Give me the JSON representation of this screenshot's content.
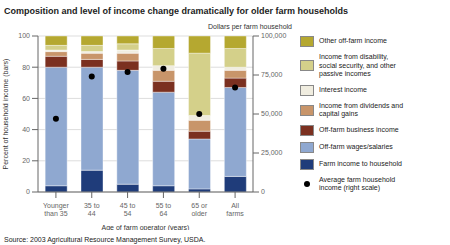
{
  "chart_data": {
    "type": "bar",
    "stacked": true,
    "grid": true,
    "legend": "right",
    "title": "Composition and level of income change dramatically for older farm households",
    "xlabel": "Age of farm operator (years)",
    "ylabel": "Percent of household income (bars)",
    "y2label": "Dollars per farm household",
    "source": "Source: 2003 Agricultural Resource Management Survey, USDA.",
    "categories": [
      "Younger\nthan 35",
      "35 to\n44",
      "45 to\n54",
      "55 to\n64",
      "65 or\nolder",
      "All\nfarms"
    ],
    "ylim": [
      0,
      100
    ],
    "yticks": [
      0,
      20,
      40,
      60,
      80,
      100
    ],
    "y2lim": [
      0,
      100000
    ],
    "y2ticks": [
      0,
      {
        "value": 25000,
        "label": "25,000"
      },
      {
        "value": 50000,
        "label": "50,000"
      },
      {
        "value": 75000,
        "label": "75,000"
      },
      {
        "value": 100000,
        "label": "100,000"
      }
    ],
    "series": [
      {
        "name": "Farm income to household",
        "type": "bar",
        "color": "#1f3c7a",
        "values": [
          4,
          14,
          5,
          4,
          2,
          10
        ]
      },
      {
        "name": "Off-farm wages/salaries",
        "type": "bar",
        "color": "#8fa8d0",
        "values": [
          76,
          66,
          73,
          60,
          32,
          57
        ]
      },
      {
        "name": "Off-farm business income",
        "type": "bar",
        "color": "#7b3020",
        "values": [
          7,
          5,
          6,
          7,
          5,
          6
        ]
      },
      {
        "name": "Income from dividends and\ncapital gains",
        "type": "bar",
        "color": "#c8956a",
        "values": [
          3,
          4,
          5,
          7,
          7,
          5
        ]
      },
      {
        "name": "Interest income",
        "type": "bar",
        "color": "#f0ede0",
        "values": [
          1,
          1,
          2,
          3,
          3,
          2
        ]
      },
      {
        "name": "Income from disability,\nsocial security, and other\npassive incomes",
        "type": "bar",
        "color": "#d4d08a",
        "values": [
          3,
          4,
          4,
          11,
          40,
          12
        ]
      },
      {
        "name": "Other off-farm income",
        "type": "bar",
        "color": "#b5a830",
        "values": [
          6,
          6,
          5,
          8,
          11,
          8
        ]
      },
      {
        "name": "Average farm household\nincome (right scale)",
        "type": "scatter",
        "axis": "y2",
        "marker": "circle",
        "color": "#000000",
        "values": [
          47000,
          74000,
          77000,
          79000,
          50000,
          67000
        ]
      }
    ]
  }
}
